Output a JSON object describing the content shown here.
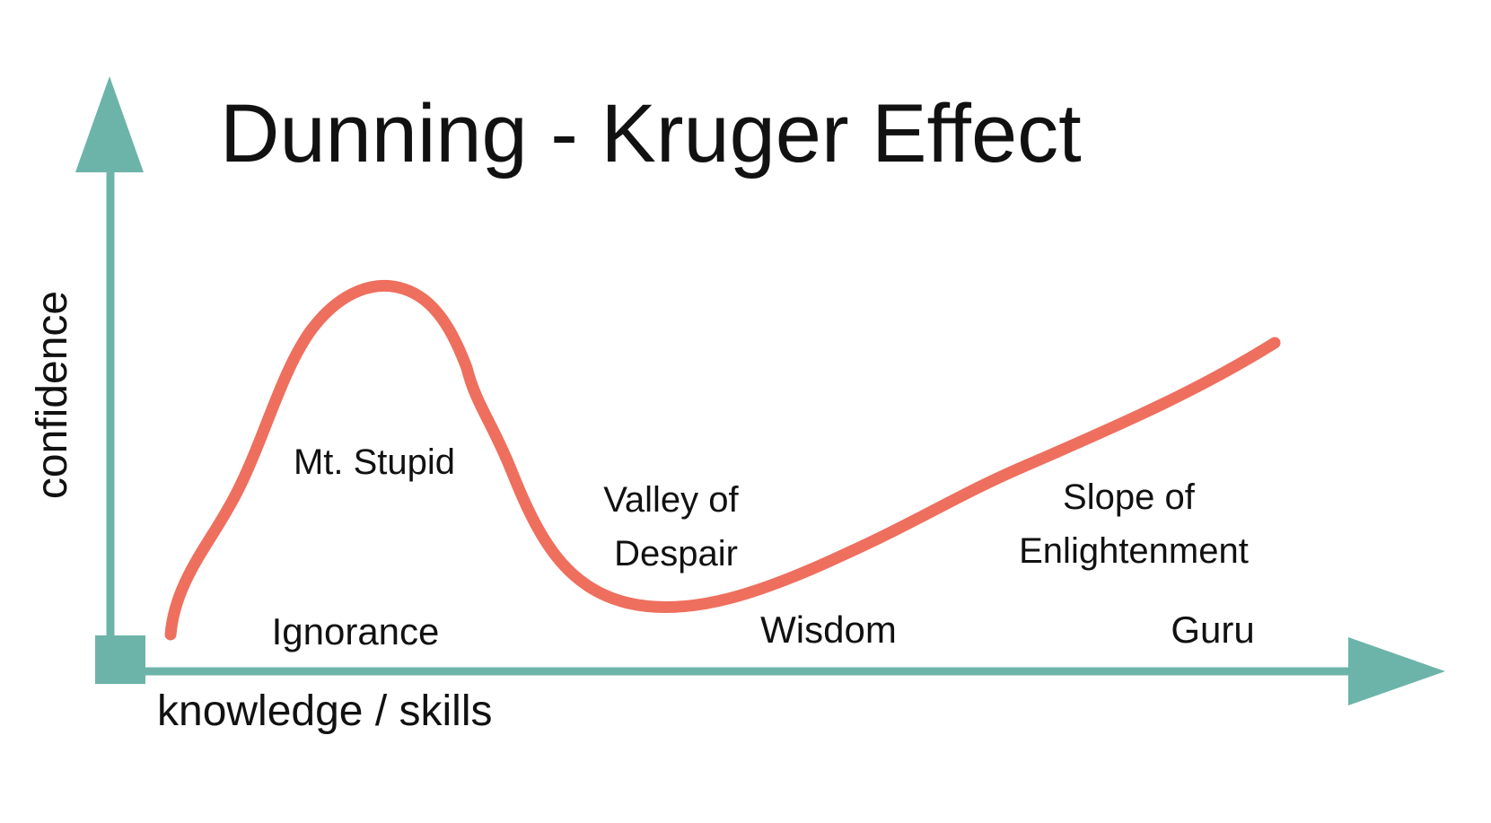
{
  "title": "Dunning - Kruger Effect",
  "axes": {
    "y_label": "confidence",
    "x_label": "knowledge / skills"
  },
  "curve_regions": [
    {
      "id": "mt-stupid",
      "lines": [
        "Mt. Stupid"
      ]
    },
    {
      "id": "valley-of-despair",
      "lines": [
        "Valley of",
        "Despair"
      ]
    },
    {
      "id": "slope-of-enlightenment",
      "lines": [
        "Slope of",
        "Enlightenment"
      ]
    }
  ],
  "knowledge_levels": [
    {
      "id": "ignorance",
      "label": "Ignorance"
    },
    {
      "id": "wisdom",
      "label": "Wisdom"
    },
    {
      "id": "guru",
      "label": "Guru"
    }
  ],
  "colors": {
    "axis": "#6cb4aa",
    "curve": "#ee6f5e",
    "text": "#111111",
    "background": "#ffffff"
  }
}
